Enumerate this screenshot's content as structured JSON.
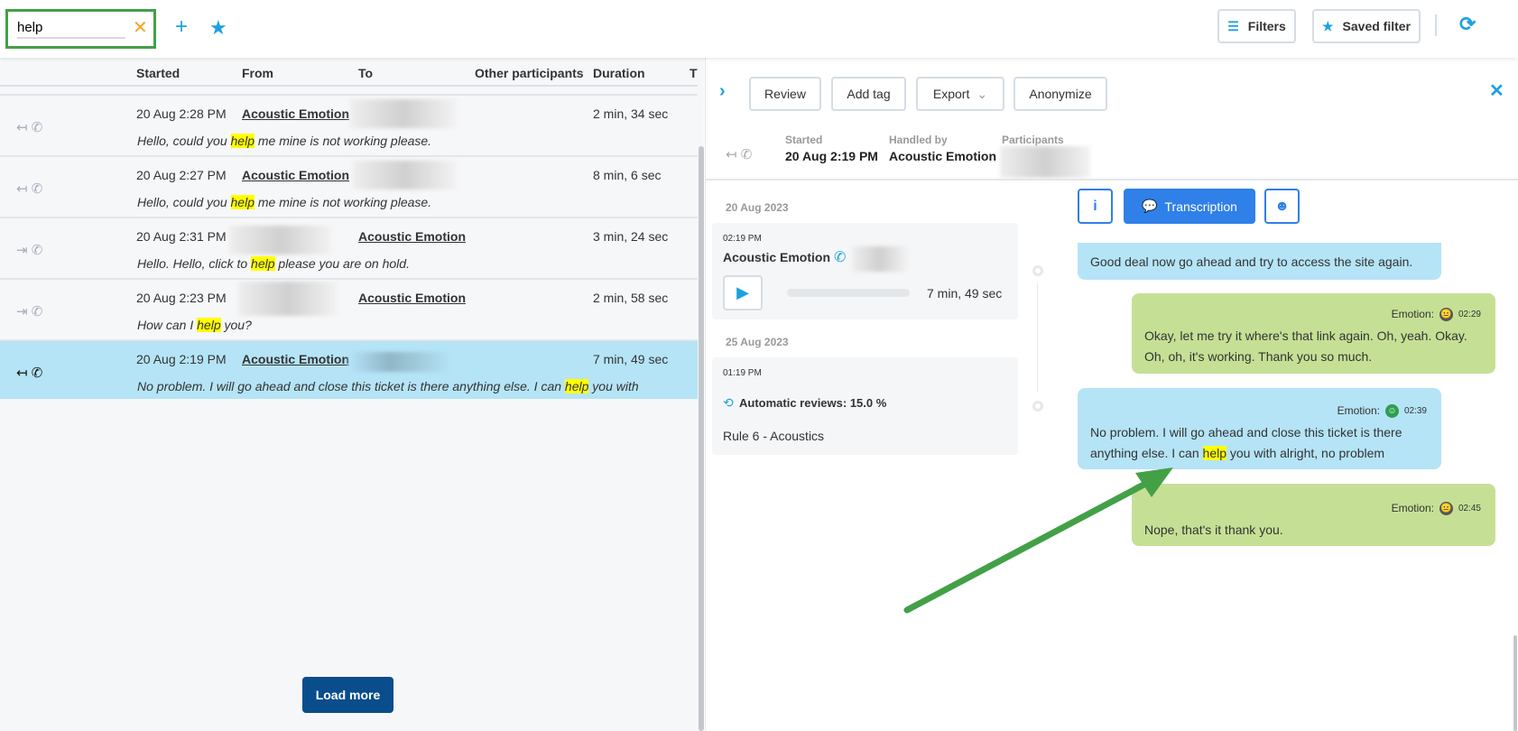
{
  "search": {
    "value": "help",
    "clear_icon": "close-icon"
  },
  "toolbar": {
    "filters": "Filters",
    "saved_filter": "Saved filter"
  },
  "table": {
    "headers": [
      "Started",
      "From",
      "To",
      "Other participants",
      "Duration",
      "T"
    ],
    "rows": [
      {
        "direction": "inbound",
        "started": "20 Aug 2:28 PM",
        "from": "Acoustic Emotion",
        "to": "",
        "duration": "2 min, 34 sec",
        "pre": "Hello, could you ",
        "hit": "help",
        "post": " me mine is not working please."
      },
      {
        "direction": "inbound",
        "started": "20 Aug 2:27 PM",
        "from": "Acoustic Emotion",
        "to": "",
        "duration": "8 min, 6 sec",
        "pre": "Hello, could you ",
        "hit": "help",
        "post": " me mine is not working please."
      },
      {
        "direction": "outbound",
        "started": "20 Aug 2:31 PM",
        "from": "",
        "to": "Acoustic Emotion",
        "duration": "3 min, 24 sec",
        "pre": "Hello. Hello, click to ",
        "hit": "help",
        "post": " please you are on hold."
      },
      {
        "direction": "outbound",
        "started": "20 Aug 2:23 PM",
        "from": "",
        "to": "Acoustic Emotion",
        "duration": "2 min, 58 sec",
        "pre": "How can I ",
        "hit": "help",
        "post": " you?"
      },
      {
        "direction": "inbound",
        "selected": true,
        "started": "20 Aug 2:19 PM",
        "from": "Acoustic Emotion",
        "to": "",
        "duration": "7 min, 49 sec",
        "pre": "No problem. I will go ahead and close this ticket is there anything else. I can ",
        "hit": "help",
        "post": " you with"
      }
    ],
    "load_more": "Load more"
  },
  "detail": {
    "actions": {
      "review": "Review",
      "add_tag": "Add tag",
      "export": "Export",
      "anonymize": "Anonymize"
    },
    "meta": {
      "started_label": "Started",
      "started": "20 Aug 2:19 PM",
      "handled_label": "Handled by",
      "handled": "Acoustic Emotion",
      "participants_label": "Participants"
    },
    "timeline": {
      "date1": "20 Aug 2023",
      "call_time": "02:19 PM",
      "call_name": "Acoustic Emotion",
      "call_duration": "7 min, 49 sec",
      "date2": "25 Aug 2023",
      "review_time": "01:19 PM",
      "review_label": "Automatic reviews: 15.0 %",
      "rule": "Rule 6 - Acoustics"
    },
    "tabs": {
      "transcription": "Transcription"
    },
    "messages": [
      {
        "side": "left",
        "text": "Good deal now go ahead and try to access the site again."
      },
      {
        "side": "right",
        "emotion_label": "Emotion:",
        "emotion": "neutral",
        "time": "02:29",
        "text": "Okay, let me try it where's that link again. Oh, yeah. Okay. Oh, oh, it's working. Thank you so much."
      },
      {
        "side": "left",
        "emotion_label": "Emotion:",
        "emotion": "happy",
        "time": "02:39",
        "pre": "No problem. I will go ahead and close this ticket is there anything else. I can ",
        "hit": "help",
        "post": " you with alright, no problem"
      },
      {
        "side": "right",
        "emotion_label": "Emotion:",
        "emotion": "neutral",
        "time": "02:45",
        "text": "Nope, that's it thank you."
      }
    ]
  },
  "colors": {
    "accent": "#1da1e2",
    "primary_button": "#2f80e8",
    "load_more": "#0a4d8c",
    "selected_row": "#b5e4f7",
    "highlight": "#ffff00",
    "agent_bubble": "#b5e4f7",
    "customer_bubble": "#c5e095",
    "annotation_arrow": "#43a047"
  }
}
